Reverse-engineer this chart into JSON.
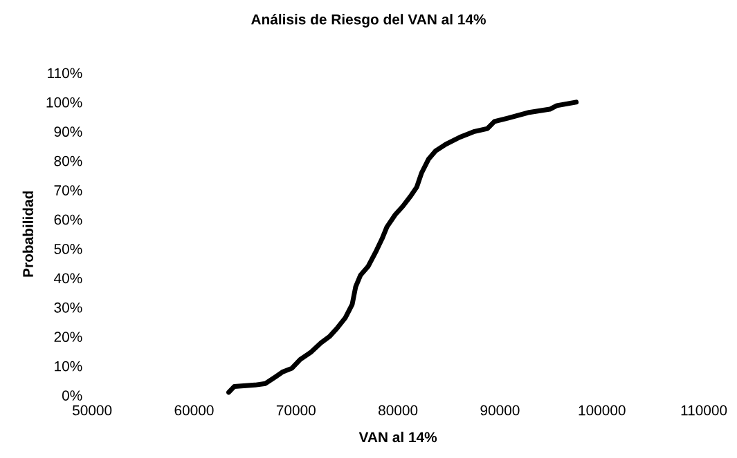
{
  "chart_data": {
    "type": "line",
    "title": "Análisis de Riesgo del VAN al 14%",
    "xlabel": "VAN al 14%",
    "ylabel": "Probabilidad",
    "x": [
      63400,
      63950,
      65990,
      67000,
      68030,
      68710,
      69590,
      70410,
      71430,
      72450,
      73270,
      74010,
      74830,
      75510,
      75850,
      76330,
      77080,
      77890,
      78440,
      78910,
      79730,
      80480,
      81290,
      81840,
      82310,
      82990,
      83670,
      84690,
      86050,
      87420,
      88780,
      89460,
      90820,
      92860,
      94900,
      95580,
      97480
    ],
    "series": [
      {
        "color": "#000000",
        "values": [
          1,
          3,
          3.5,
          4,
          6.4,
          8,
          9.2,
          12.2,
          14.6,
          17.9,
          20,
          22.8,
          26.4,
          31,
          37,
          41,
          44,
          49.4,
          53.4,
          57.4,
          61.6,
          64.5,
          68.2,
          71,
          75.8,
          80.5,
          83.3,
          85.6,
          88,
          89.9,
          91,
          93.4,
          94.6,
          96.5,
          97.6,
          98.8,
          100
        ]
      }
    ],
    "xlim": [
      50000,
      110000
    ],
    "xticks": [
      50000,
      60000,
      70000,
      80000,
      90000,
      100000,
      110000
    ],
    "ylim": [
      0,
      110
    ],
    "yticks": [
      {
        "value": 0,
        "label": "0%"
      },
      {
        "value": 10,
        "label": "10%"
      },
      {
        "value": 20,
        "label": "20%"
      },
      {
        "value": 30,
        "label": "30%"
      },
      {
        "value": 40,
        "label": "40%"
      },
      {
        "value": 50,
        "label": "50%"
      },
      {
        "value": 60,
        "label": "60%"
      },
      {
        "value": 70,
        "label": "70%"
      },
      {
        "value": 80,
        "label": "80%"
      },
      {
        "value": 90,
        "label": "90%"
      },
      {
        "value": 100,
        "label": "100%"
      },
      {
        "value": 110,
        "label": "110%"
      }
    ],
    "grid": false,
    "legend": false,
    "marker": "none",
    "line_style": "solid"
  }
}
